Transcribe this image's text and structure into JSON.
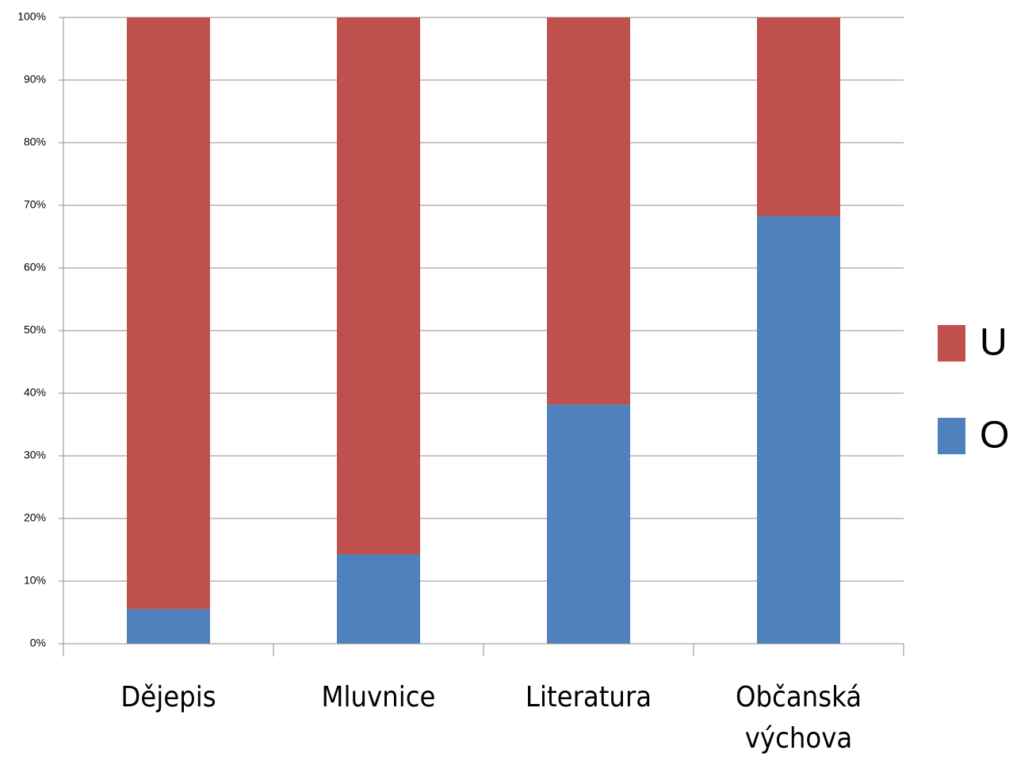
{
  "chart_data": {
    "type": "stacked_bar_100",
    "categories": [
      "Dějepis",
      "Mluvnice",
      "Literatura",
      "Občanská výchova"
    ],
    "series": [
      {
        "name": "O",
        "color": "#4f81bd",
        "values": [
          5.5,
          14.3,
          38.2,
          68.3
        ]
      },
      {
        "name": "U",
        "color": "#c0504d",
        "values": [
          94.5,
          85.7,
          61.8,
          31.7
        ]
      }
    ],
    "ylim": [
      0,
      100
    ],
    "yticks": [
      {
        "value": 0,
        "label": "0%"
      },
      {
        "value": 10,
        "label": "10%"
      },
      {
        "value": 20,
        "label": "20%"
      },
      {
        "value": 30,
        "label": "30%"
      },
      {
        "value": 40,
        "label": "40%"
      },
      {
        "value": 50,
        "label": "50%"
      },
      {
        "value": 60,
        "label": "60%"
      },
      {
        "value": 70,
        "label": "70%"
      },
      {
        "value": 80,
        "label": "80%"
      },
      {
        "value": 90,
        "label": "90%"
      },
      {
        "value": 100,
        "label": "100%"
      }
    ],
    "grid": true,
    "legend": "right"
  }
}
